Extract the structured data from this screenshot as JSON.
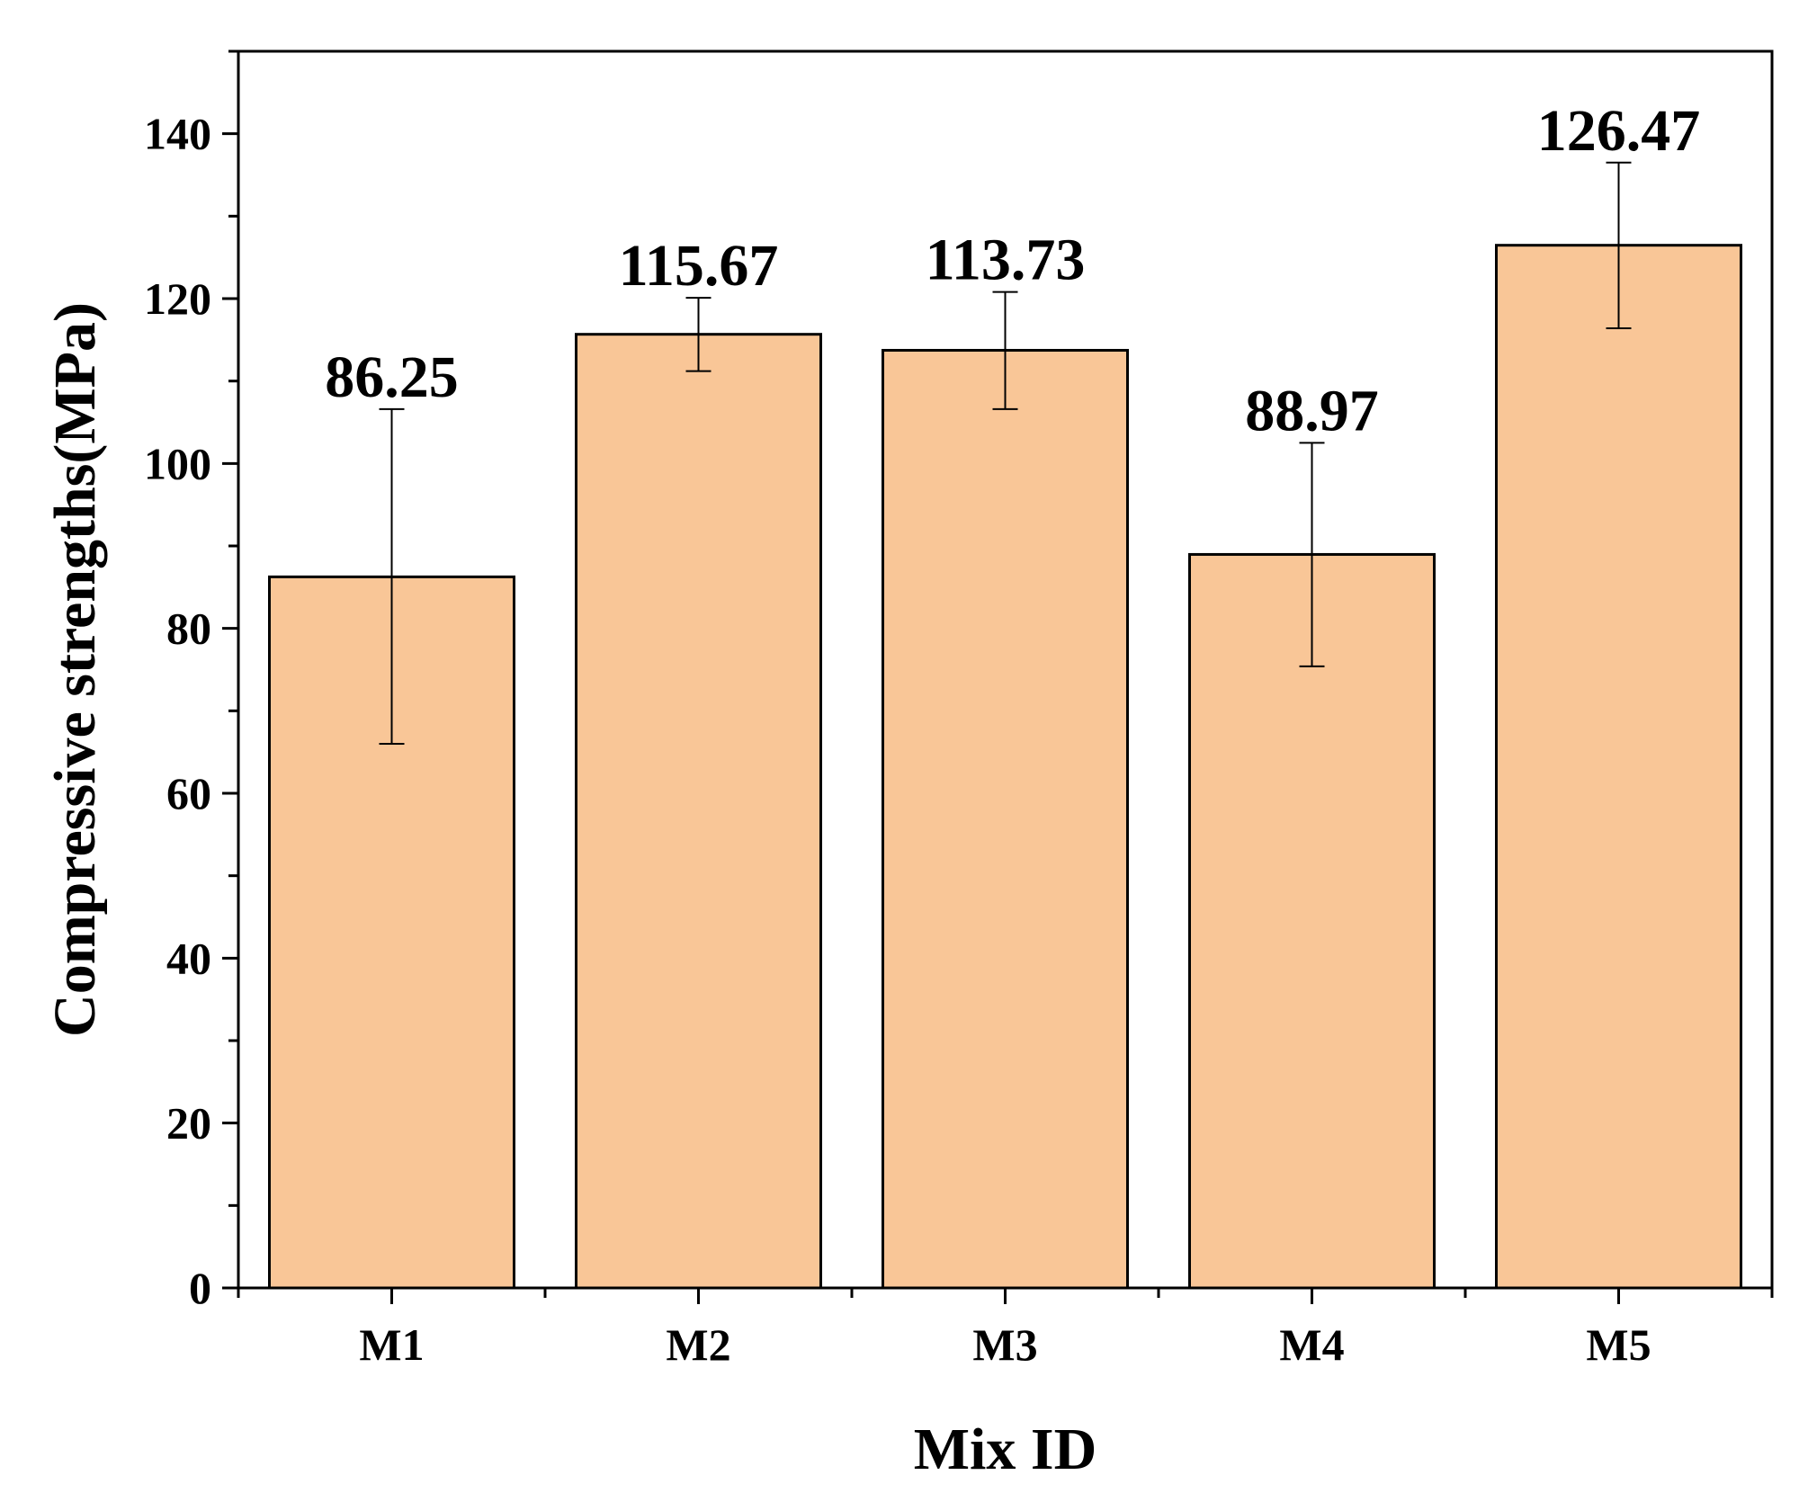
{
  "chart_data": {
    "type": "bar",
    "title": "",
    "xlabel": "Mix ID",
    "ylabel": "Compressive strengths(MPa)",
    "categories": [
      "M1",
      "M2",
      "M3",
      "M4",
      "M5"
    ],
    "values": [
      86.25,
      115.67,
      113.73,
      88.97,
      126.47
    ],
    "value_labels": [
      "86.25",
      "115.67",
      "113.73",
      "88.97",
      "126.47"
    ],
    "error_low": [
      66.0,
      111.2,
      106.6,
      75.4,
      116.4
    ],
    "error_high": [
      106.6,
      120.1,
      120.8,
      102.5,
      136.5
    ],
    "ylim": [
      0,
      150
    ],
    "yticks": [
      0,
      20,
      40,
      60,
      80,
      100,
      120,
      140
    ],
    "ytick_labels": [
      "0",
      "20",
      "40",
      "60",
      "80",
      "100",
      "120",
      "140"
    ],
    "y_minor_step": 10,
    "grid": false,
    "bar_color": "#F9C697",
    "edge_color": "#000000"
  }
}
